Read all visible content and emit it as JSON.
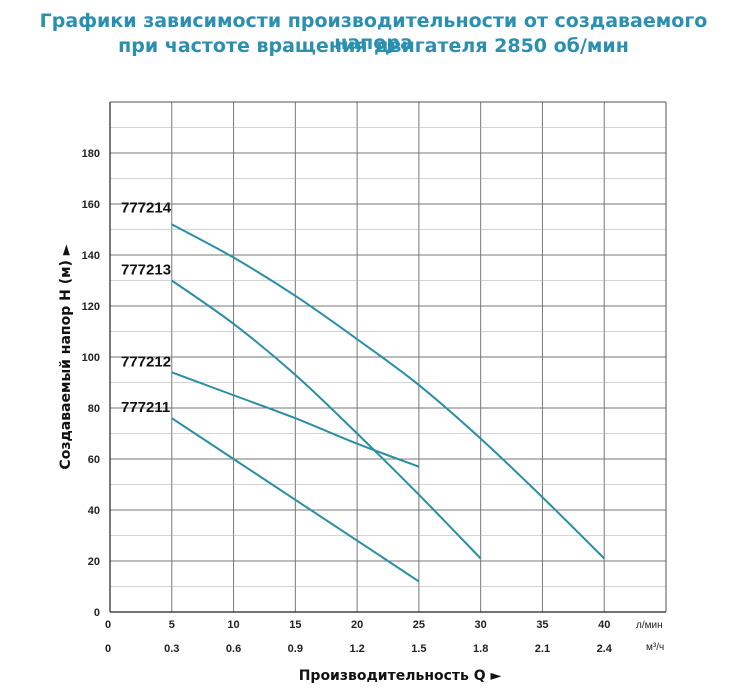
{
  "title_line1": "Графики зависимости производительности от создаваемого напора",
  "title_line2": "при частоте вращения двигателя 2850 об/мин",
  "chart_data": {
    "type": "line",
    "xlabel": "Производительность Q ►",
    "ylabel": "Создаваемый напор H (м) ►",
    "x_unit": "л/мин",
    "x2_unit": "м³/ч",
    "xlim": [
      0,
      45
    ],
    "ylim": [
      0,
      200
    ],
    "x_ticks": [
      "0",
      "5",
      "10",
      "15",
      "20",
      "25",
      "30",
      "35",
      "40"
    ],
    "x2_ticks": [
      "0",
      "0.3",
      "0.6",
      "0.9",
      "1.2",
      "1.5",
      "1.8",
      "2.1",
      "2.4"
    ],
    "y_ticks": [
      "0",
      "20",
      "40",
      "60",
      "80",
      "100",
      "120",
      "140",
      "160",
      "180"
    ],
    "grid": true,
    "series": [
      {
        "name": "777214",
        "x": [
          5,
          10,
          15,
          20,
          25,
          30,
          35,
          40
        ],
        "y": [
          152,
          139,
          124,
          107,
          89,
          68,
          45,
          21
        ]
      },
      {
        "name": "777213",
        "x": [
          5,
          10,
          15,
          20,
          25,
          30
        ],
        "y": [
          130,
          113,
          93,
          70,
          46,
          21
        ]
      },
      {
        "name": "777212",
        "x": [
          5,
          10,
          15,
          20,
          25
        ],
        "y": [
          94,
          85,
          76,
          66,
          57
        ]
      },
      {
        "name": "777211",
        "x": [
          5,
          10,
          15,
          20,
          25
        ],
        "y": [
          76,
          60,
          44,
          28,
          12
        ]
      }
    ],
    "line_color": "#2a8fa6"
  }
}
